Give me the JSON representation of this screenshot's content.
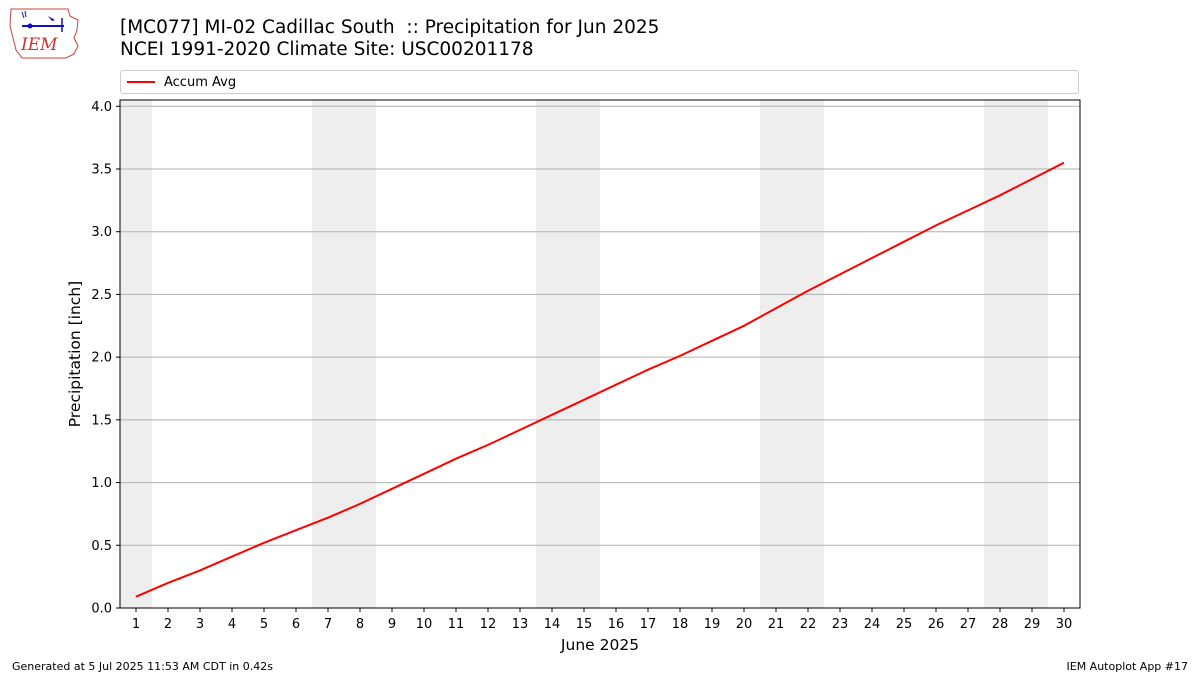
{
  "header": {
    "title_line1": "[MC077] MI-02 Cadillac South  :: Precipitation for Jun 2025",
    "title_line2": "NCEI 1991-2020 Climate Site: USC00201178",
    "logo_text": "IEM"
  },
  "legend": {
    "label": "Accum Avg",
    "color": "#ff0000"
  },
  "footer": {
    "left": "Generated at 5 Jul 2025 11:53 AM CDT in 0.42s",
    "right": "IEM Autoplot App #17"
  },
  "chart_data": {
    "type": "line",
    "title": "[MC077] MI-02 Cadillac South  :: Precipitation for Jun 2025",
    "subtitle": "NCEI 1991-2020 Climate Site: USC00201178",
    "xlabel": "June 2025",
    "ylabel": "Precipitation [inch]",
    "xlim": [
      0.5,
      30.5
    ],
    "ylim": [
      0,
      4.05
    ],
    "x_ticks": [
      1,
      2,
      3,
      4,
      5,
      6,
      7,
      8,
      9,
      10,
      11,
      12,
      13,
      14,
      15,
      16,
      17,
      18,
      19,
      20,
      21,
      22,
      23,
      24,
      25,
      26,
      27,
      28,
      29,
      30
    ],
    "y_ticks": [
      0.0,
      0.5,
      1.0,
      1.5,
      2.0,
      2.5,
      3.0,
      3.5,
      4.0
    ],
    "y_tick_labels": [
      "0.0",
      "0.5",
      "1.0",
      "1.5",
      "2.0",
      "2.5",
      "3.0",
      "3.5",
      "4.0"
    ],
    "grid": "horizontal",
    "legend_position": "top",
    "weekend_shading": [
      [
        0.5,
        1.5
      ],
      [
        6.5,
        8.5
      ],
      [
        13.5,
        15.5
      ],
      [
        20.5,
        22.5
      ],
      [
        27.5,
        29.5
      ]
    ],
    "shading_color": "#eeeeee",
    "series": [
      {
        "name": "Accum Avg",
        "color": "#ff0000",
        "x": [
          1,
          2,
          3,
          4,
          5,
          6,
          7,
          8,
          9,
          10,
          11,
          12,
          13,
          14,
          15,
          16,
          17,
          18,
          19,
          20,
          21,
          22,
          23,
          24,
          25,
          26,
          27,
          28,
          29,
          30
        ],
        "values": [
          0.09,
          0.2,
          0.3,
          0.41,
          0.52,
          0.62,
          0.72,
          0.83,
          0.95,
          1.07,
          1.19,
          1.3,
          1.42,
          1.54,
          1.66,
          1.78,
          1.9,
          2.01,
          2.13,
          2.25,
          2.39,
          2.53,
          2.66,
          2.79,
          2.92,
          3.05,
          3.17,
          3.29,
          3.42,
          3.55
        ]
      }
    ]
  }
}
